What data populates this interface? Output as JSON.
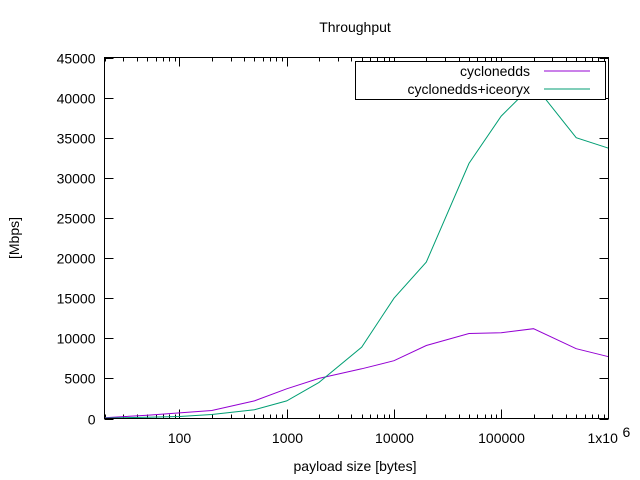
{
  "chart_data": {
    "type": "line",
    "title": "Throughput",
    "xlabel": "payload size [bytes]",
    "ylabel": "[Mbps]",
    "x_scale": "log",
    "xlim": [
      20,
      1000000
    ],
    "ylim": [
      0,
      45000
    ],
    "x_ticks": [
      {
        "value": 100,
        "label": "100"
      },
      {
        "value": 1000,
        "label": "1000"
      },
      {
        "value": 10000,
        "label": "10000"
      },
      {
        "value": 100000,
        "label": "100000"
      }
    ],
    "x_end_tick": {
      "value": 1000000,
      "label": "1x10",
      "exponent": "6"
    },
    "y_ticks": [
      0,
      5000,
      10000,
      15000,
      20000,
      25000,
      30000,
      35000,
      40000,
      45000
    ],
    "grid": false,
    "legend_position": "top-right",
    "series": [
      {
        "name": "cyclonedds",
        "color": "#9400d3",
        "points": [
          [
            20,
            100
          ],
          [
            50,
            400
          ],
          [
            100,
            700
          ],
          [
            200,
            1000
          ],
          [
            500,
            2200
          ],
          [
            1000,
            3700
          ],
          [
            2000,
            5000
          ],
          [
            5000,
            6200
          ],
          [
            10000,
            7200
          ],
          [
            20000,
            9100
          ],
          [
            50000,
            10600
          ],
          [
            100000,
            10700
          ],
          [
            200000,
            11200
          ],
          [
            500000,
            8700
          ],
          [
            1000000,
            7700
          ]
        ]
      },
      {
        "name": "cyclonedds+iceoryx",
        "color": "#009e73",
        "points": [
          [
            20,
            50
          ],
          [
            50,
            150
          ],
          [
            100,
            250
          ],
          [
            200,
            500
          ],
          [
            500,
            1100
          ],
          [
            1000,
            2200
          ],
          [
            2000,
            4500
          ],
          [
            5000,
            8900
          ],
          [
            10000,
            15000
          ],
          [
            20000,
            19500
          ],
          [
            50000,
            31800
          ],
          [
            100000,
            37700
          ],
          [
            200000,
            41700
          ],
          [
            500000,
            35000
          ],
          [
            1000000,
            33700
          ]
        ]
      }
    ]
  }
}
